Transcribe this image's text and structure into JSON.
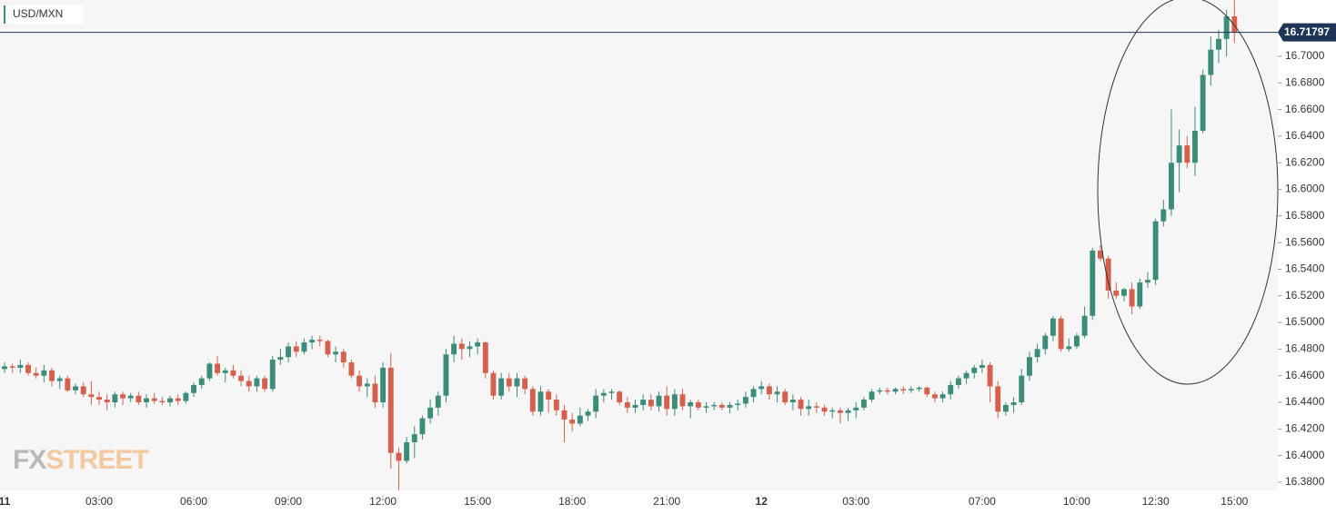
{
  "chart_data": {
    "type": "candlestick",
    "symbol": "USD/MXN",
    "watermark": [
      "FX",
      "STREET"
    ],
    "up_color": "#3b8c78",
    "down_color": "#d5604e",
    "last_price": 16.71797,
    "last_price_color": "#1f3557",
    "xlim": [
      -0.577,
      161.5
    ],
    "xticks": [
      {
        "value": 0,
        "label": "11"
      },
      {
        "value": 12,
        "label": "03:00"
      },
      {
        "value": 24,
        "label": "06:00"
      },
      {
        "value": 36,
        "label": "09:00"
      },
      {
        "value": 48,
        "label": "12:00"
      },
      {
        "value": 60,
        "label": "15:00"
      },
      {
        "value": 72,
        "label": "18:00"
      },
      {
        "value": 84,
        "label": "21:00"
      },
      {
        "value": 96,
        "label": "12"
      },
      {
        "value": 108,
        "label": "03:00"
      },
      {
        "value": 124,
        "label": "07:00"
      },
      {
        "value": 136,
        "label": "10:00"
      },
      {
        "value": 146,
        "label": "12:30"
      },
      {
        "value": 156,
        "label": "15:00"
      }
    ],
    "ylim": [
      16.3704,
      16.7423
    ],
    "yticks": [
      {
        "value": 16.38,
        "label": "16.3800"
      },
      {
        "value": 16.4,
        "label": "16.4000"
      },
      {
        "value": 16.42,
        "label": "16.4200"
      },
      {
        "value": 16.44,
        "label": "16.4400"
      },
      {
        "value": 16.46,
        "label": "16.4600"
      },
      {
        "value": 16.48,
        "label": "16.4800"
      },
      {
        "value": 16.5,
        "label": "16.5000"
      },
      {
        "value": 16.52,
        "label": "16.5200"
      },
      {
        "value": 16.54,
        "label": "16.5400"
      },
      {
        "value": 16.56,
        "label": "16.5600"
      },
      {
        "value": 16.58,
        "label": "16.5800"
      },
      {
        "value": 16.6,
        "label": "16.6000"
      },
      {
        "value": 16.62,
        "label": "16.6200"
      },
      {
        "value": 16.64,
        "label": "16.6400"
      },
      {
        "value": 16.66,
        "label": "16.6600"
      },
      {
        "value": 16.68,
        "label": "16.6800"
      },
      {
        "value": 16.7,
        "label": "16.7000"
      }
    ],
    "ohlc": [
      [
        16.465,
        16.47,
        16.462,
        16.467
      ],
      [
        16.467,
        16.469,
        16.462,
        16.466
      ],
      [
        16.466,
        16.472,
        16.462,
        16.468
      ],
      [
        16.468,
        16.47,
        16.46,
        16.462
      ],
      [
        16.462,
        16.466,
        16.458,
        16.46
      ],
      [
        16.46,
        16.468,
        16.455,
        16.464
      ],
      [
        16.464,
        16.466,
        16.452,
        16.456
      ],
      [
        16.456,
        16.46,
        16.45,
        16.458
      ],
      [
        16.458,
        16.46,
        16.448,
        16.449
      ],
      [
        16.449,
        16.454,
        16.446,
        16.452
      ],
      [
        16.452,
        16.455,
        16.444,
        16.446
      ],
      [
        16.446,
        16.456,
        16.438,
        16.444
      ],
      [
        16.444,
        16.448,
        16.438,
        16.442
      ],
      [
        16.442,
        16.446,
        16.434,
        16.44
      ],
      [
        16.44,
        16.448,
        16.436,
        16.446
      ],
      [
        16.446,
        16.448,
        16.438,
        16.443
      ],
      [
        16.443,
        16.447,
        16.44,
        16.445
      ],
      [
        16.445,
        16.448,
        16.438,
        16.44
      ],
      [
        16.44,
        16.446,
        16.436,
        16.443
      ],
      [
        16.443,
        16.447,
        16.439,
        16.441
      ],
      [
        16.441,
        16.444,
        16.438,
        16.44
      ],
      [
        16.44,
        16.445,
        16.437,
        16.443
      ],
      [
        16.443,
        16.446,
        16.438,
        16.441
      ],
      [
        16.441,
        16.448,
        16.439,
        16.447
      ],
      [
        16.447,
        16.455,
        16.444,
        16.453
      ],
      [
        16.453,
        16.46,
        16.45,
        16.458
      ],
      [
        16.458,
        16.47,
        16.456,
        16.469
      ],
      [
        16.469,
        16.475,
        16.46,
        16.462
      ],
      [
        16.462,
        16.466,
        16.455,
        16.464
      ],
      [
        16.464,
        16.468,
        16.458,
        16.46
      ],
      [
        16.46,
        16.464,
        16.452,
        16.456
      ],
      [
        16.456,
        16.46,
        16.448,
        16.452
      ],
      [
        16.452,
        16.46,
        16.448,
        16.458
      ],
      [
        16.458,
        16.46,
        16.448,
        16.45
      ],
      [
        16.45,
        16.475,
        16.448,
        16.472
      ],
      [
        16.472,
        16.48,
        16.468,
        16.474
      ],
      [
        16.474,
        16.485,
        16.47,
        16.482
      ],
      [
        16.482,
        16.486,
        16.474,
        16.478
      ],
      [
        16.478,
        16.488,
        16.476,
        16.485
      ],
      [
        16.485,
        16.49,
        16.48,
        16.487
      ],
      [
        16.487,
        16.49,
        16.482,
        16.486
      ],
      [
        16.486,
        16.487,
        16.474,
        16.476
      ],
      [
        16.476,
        16.482,
        16.47,
        16.478
      ],
      [
        16.478,
        16.48,
        16.466,
        16.47
      ],
      [
        16.47,
        16.472,
        16.458,
        16.46
      ],
      [
        16.46,
        16.464,
        16.448,
        16.452
      ],
      [
        16.452,
        16.458,
        16.444,
        16.454
      ],
      [
        16.454,
        16.46,
        16.436,
        16.44
      ],
      [
        16.44,
        16.47,
        16.436,
        16.466
      ],
      [
        16.466,
        16.477,
        16.39,
        16.402
      ],
      [
        16.402,
        16.406,
        16.374,
        16.396
      ],
      [
        16.396,
        16.414,
        16.394,
        16.41
      ],
      [
        16.41,
        16.422,
        16.398,
        16.416
      ],
      [
        16.416,
        16.43,
        16.412,
        16.428
      ],
      [
        16.428,
        16.442,
        16.424,
        16.436
      ],
      [
        16.436,
        16.448,
        16.43,
        16.445
      ],
      [
        16.445,
        16.48,
        16.44,
        16.476
      ],
      [
        16.476,
        16.49,
        16.47,
        16.484
      ],
      [
        16.484,
        16.488,
        16.472,
        16.48
      ],
      [
        16.48,
        16.486,
        16.474,
        16.482
      ],
      [
        16.482,
        16.488,
        16.476,
        16.485
      ],
      [
        16.485,
        16.486,
        16.458,
        16.462
      ],
      [
        16.462,
        16.464,
        16.442,
        16.445
      ],
      [
        16.445,
        16.462,
        16.442,
        16.458
      ],
      [
        16.458,
        16.462,
        16.448,
        16.452
      ],
      [
        16.452,
        16.462,
        16.444,
        16.458
      ],
      [
        16.458,
        16.46,
        16.446,
        16.45
      ],
      [
        16.45,
        16.452,
        16.43,
        16.433
      ],
      [
        16.433,
        16.452,
        16.43,
        16.448
      ],
      [
        16.448,
        16.45,
        16.432,
        16.442
      ],
      [
        16.442,
        16.446,
        16.43,
        16.434
      ],
      [
        16.434,
        16.438,
        16.41,
        16.427
      ],
      [
        16.427,
        16.432,
        16.418,
        16.424
      ],
      [
        16.424,
        16.436,
        16.422,
        16.43
      ],
      [
        16.43,
        16.435,
        16.426,
        16.433
      ],
      [
        16.433,
        16.45,
        16.428,
        16.445
      ],
      [
        16.445,
        16.45,
        16.44,
        16.447
      ],
      [
        16.447,
        16.45,
        16.442,
        16.448
      ],
      [
        16.448,
        16.449,
        16.438,
        16.44
      ],
      [
        16.44,
        16.444,
        16.432,
        16.436
      ],
      [
        16.436,
        16.442,
        16.432,
        16.438
      ],
      [
        16.438,
        16.446,
        16.434,
        16.442
      ],
      [
        16.442,
        16.446,
        16.434,
        16.437
      ],
      [
        16.437,
        16.448,
        16.433,
        16.445
      ],
      [
        16.445,
        16.452,
        16.43,
        16.435
      ],
      [
        16.435,
        16.45,
        16.43,
        16.446
      ],
      [
        16.446,
        16.45,
        16.434,
        16.437
      ],
      [
        16.437,
        16.442,
        16.428,
        16.44
      ],
      [
        16.44,
        16.442,
        16.434,
        16.436
      ],
      [
        16.436,
        16.44,
        16.432,
        16.437
      ],
      [
        16.437,
        16.44,
        16.434,
        16.438
      ],
      [
        16.438,
        16.44,
        16.434,
        16.436
      ],
      [
        16.436,
        16.44,
        16.432,
        16.438
      ],
      [
        16.438,
        16.442,
        16.434,
        16.439
      ],
      [
        16.439,
        16.448,
        16.436,
        16.444
      ],
      [
        16.444,
        16.452,
        16.44,
        16.45
      ],
      [
        16.45,
        16.456,
        16.446,
        16.452
      ],
      [
        16.452,
        16.454,
        16.442,
        16.446
      ],
      [
        16.446,
        16.452,
        16.44,
        16.448
      ],
      [
        16.448,
        16.45,
        16.438,
        16.44
      ],
      [
        16.44,
        16.446,
        16.434,
        16.442
      ],
      [
        16.442,
        16.444,
        16.43,
        16.435
      ],
      [
        16.435,
        16.442,
        16.43,
        16.437
      ],
      [
        16.437,
        16.44,
        16.432,
        16.436
      ],
      [
        16.436,
        16.438,
        16.43,
        16.433
      ],
      [
        16.433,
        16.436,
        16.428,
        16.434
      ],
      [
        16.434,
        16.436,
        16.424,
        16.432
      ],
      [
        16.432,
        16.436,
        16.426,
        16.434
      ],
      [
        16.434,
        16.44,
        16.428,
        16.436
      ],
      [
        16.436,
        16.444,
        16.434,
        16.442
      ],
      [
        16.442,
        16.45,
        16.44,
        16.448
      ],
      [
        16.448,
        16.451,
        16.446,
        16.449
      ],
      [
        16.449,
        16.451,
        16.446,
        16.448
      ],
      [
        16.448,
        16.451,
        16.446,
        16.45
      ],
      [
        16.45,
        16.452,
        16.446,
        16.449
      ],
      [
        16.449,
        16.452,
        16.447,
        16.45
      ],
      [
        16.45,
        16.452,
        16.448,
        16.451
      ],
      [
        16.451,
        16.452,
        16.444,
        16.446
      ],
      [
        16.446,
        16.448,
        16.44,
        16.443
      ],
      [
        16.443,
        16.448,
        16.44,
        16.446
      ],
      [
        16.446,
        16.456,
        16.442,
        16.453
      ],
      [
        16.453,
        16.46,
        16.45,
        16.458
      ],
      [
        16.458,
        16.464,
        16.454,
        16.462
      ],
      [
        16.462,
        16.468,
        16.458,
        16.466
      ],
      [
        16.466,
        16.472,
        16.462,
        16.468
      ],
      [
        16.468,
        16.47,
        16.44,
        16.452
      ],
      [
        16.452,
        16.456,
        16.428,
        16.433
      ],
      [
        16.433,
        16.44,
        16.43,
        16.438
      ],
      [
        16.438,
        16.444,
        16.432,
        16.44
      ],
      [
        16.44,
        16.465,
        16.438,
        16.46
      ],
      [
        16.46,
        16.478,
        16.456,
        16.474
      ],
      [
        16.474,
        16.484,
        16.47,
        16.48
      ],
      [
        16.48,
        16.492,
        16.476,
        16.49
      ],
      [
        16.49,
        16.505,
        16.486,
        16.503
      ],
      [
        16.503,
        16.505,
        16.478,
        16.48
      ],
      [
        16.48,
        16.488,
        16.478,
        16.482
      ],
      [
        16.482,
        16.492,
        16.48,
        16.49
      ],
      [
        16.49,
        16.512,
        16.488,
        16.505
      ],
      [
        16.505,
        16.556,
        16.502,
        16.554
      ],
      [
        16.554,
        16.558,
        16.546,
        16.548
      ],
      [
        16.548,
        16.55,
        16.518,
        16.524
      ],
      [
        16.524,
        16.53,
        16.518,
        16.52
      ],
      [
        16.52,
        16.526,
        16.516,
        16.525
      ],
      [
        16.525,
        16.53,
        16.506,
        16.512
      ],
      [
        16.512,
        16.533,
        16.51,
        16.53
      ],
      [
        16.53,
        16.538,
        16.526,
        16.532
      ],
      [
        16.532,
        16.578,
        16.528,
        16.576
      ],
      [
        16.576,
        16.592,
        16.572,
        16.585
      ],
      [
        16.585,
        16.66,
        16.58,
        16.62
      ],
      [
        16.62,
        16.645,
        16.598,
        16.633
      ],
      [
        16.633,
        16.64,
        16.616,
        16.62
      ],
      [
        16.62,
        16.662,
        16.61,
        16.644
      ],
      [
        16.644,
        16.69,
        16.642,
        16.686
      ],
      [
        16.686,
        16.715,
        16.678,
        16.705
      ],
      [
        16.705,
        16.72,
        16.695,
        16.713
      ],
      [
        16.713,
        16.735,
        16.7,
        16.73
      ],
      [
        16.73,
        16.742,
        16.71,
        16.718
      ]
    ]
  }
}
